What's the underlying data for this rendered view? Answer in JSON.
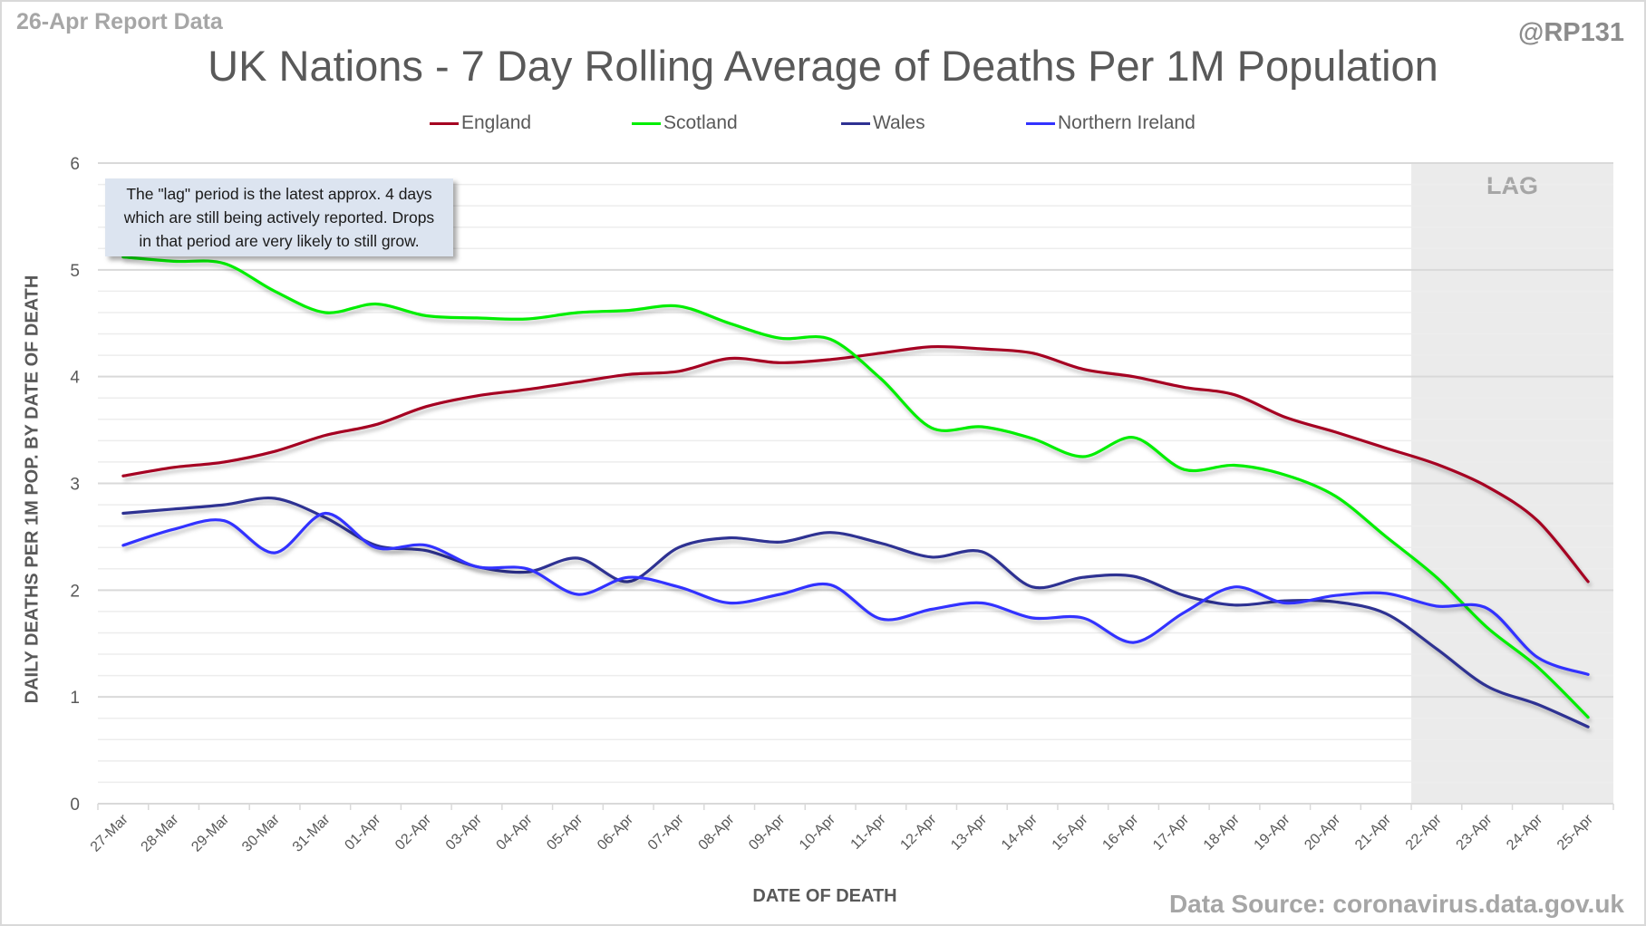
{
  "header": {
    "report_date": "26-Apr Report Data",
    "handle": "@RP131",
    "source": "Data Source: coronavirus.data.gov.uk"
  },
  "note": {
    "line1": "The \"lag\" period is the latest approx. 4 days",
    "line2": "which are still being actively reported.  Drops",
    "line3": "in that period are very likely to still grow."
  },
  "chart_data": {
    "type": "line",
    "title": "UK Nations - 7 Day Rolling Average of Deaths Per 1M Population",
    "xlabel": "DATE OF DEATH",
    "ylabel": "DAILY DEATHS PER 1M POP. BY DATE OF DEATH",
    "ylim": [
      0,
      6
    ],
    "yticks": [
      0,
      1,
      2,
      3,
      4,
      5,
      6
    ],
    "minor_grid_step": 0.2,
    "grid": true,
    "legend_position": "top",
    "lag_region": {
      "label": "LAG",
      "from": "22-Apr",
      "to": "25-Apr",
      "color": "#ebebeb"
    },
    "categories": [
      "27-Mar",
      "28-Mar",
      "29-Mar",
      "30-Mar",
      "31-Mar",
      "01-Apr",
      "02-Apr",
      "03-Apr",
      "04-Apr",
      "05-Apr",
      "06-Apr",
      "07-Apr",
      "08-Apr",
      "09-Apr",
      "10-Apr",
      "11-Apr",
      "12-Apr",
      "13-Apr",
      "14-Apr",
      "15-Apr",
      "16-Apr",
      "17-Apr",
      "18-Apr",
      "19-Apr",
      "20-Apr",
      "21-Apr",
      "22-Apr",
      "23-Apr",
      "24-Apr",
      "25-Apr"
    ],
    "series": [
      {
        "name": "England",
        "color": "#a50021",
        "values": [
          3.07,
          3.15,
          3.2,
          3.3,
          3.45,
          3.55,
          3.72,
          3.82,
          3.88,
          3.95,
          4.02,
          4.05,
          4.17,
          4.13,
          4.16,
          4.22,
          4.28,
          4.26,
          4.22,
          4.07,
          4.0,
          3.9,
          3.83,
          3.62,
          3.48,
          3.33,
          3.18,
          2.97,
          2.65,
          2.08
        ]
      },
      {
        "name": "Scotland",
        "color": "#00ee00",
        "values": [
          5.12,
          5.08,
          5.06,
          4.8,
          4.6,
          4.68,
          4.57,
          4.55,
          4.54,
          4.6,
          4.62,
          4.66,
          4.5,
          4.36,
          4.35,
          3.98,
          3.52,
          3.53,
          3.42,
          3.25,
          3.43,
          3.13,
          3.17,
          3.08,
          2.88,
          2.5,
          2.12,
          1.65,
          1.28,
          0.81
        ]
      },
      {
        "name": "Wales",
        "color": "#2e3192",
        "values": [
          2.72,
          2.76,
          2.8,
          2.86,
          2.68,
          2.42,
          2.37,
          2.22,
          2.17,
          2.3,
          2.08,
          2.4,
          2.49,
          2.45,
          2.54,
          2.44,
          2.31,
          2.36,
          2.03,
          2.12,
          2.13,
          1.95,
          1.86,
          1.9,
          1.89,
          1.78,
          1.45,
          1.1,
          0.93,
          0.72
        ]
      },
      {
        "name": "Northern Ireland",
        "color": "#3333ff",
        "values": [
          2.42,
          2.57,
          2.65,
          2.35,
          2.72,
          2.4,
          2.42,
          2.22,
          2.2,
          1.96,
          2.12,
          2.03,
          1.88,
          1.96,
          2.05,
          1.73,
          1.82,
          1.88,
          1.74,
          1.74,
          1.51,
          1.79,
          2.03,
          1.88,
          1.95,
          1.97,
          1.85,
          1.83,
          1.37,
          1.21
        ]
      }
    ]
  }
}
